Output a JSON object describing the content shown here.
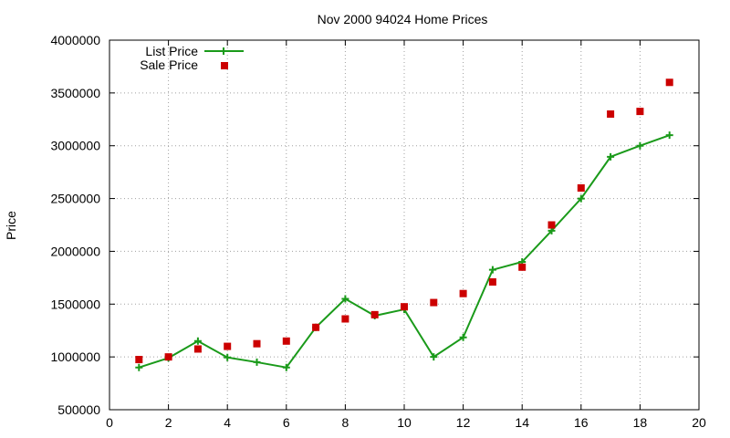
{
  "chart_data": {
    "type": "line",
    "title": "Nov 2000 94024 Home Prices",
    "xlabel": "",
    "ylabel": "Price",
    "xlim": [
      0,
      20
    ],
    "ylim": [
      500000,
      4000000
    ],
    "xticks": [
      0,
      2,
      4,
      6,
      8,
      10,
      12,
      14,
      16,
      18,
      20
    ],
    "yticks": [
      500000,
      1000000,
      1500000,
      2000000,
      2500000,
      3000000,
      3500000,
      4000000
    ],
    "grid": true,
    "legend_position": "top-left",
    "series": [
      {
        "name": "List Price",
        "style": "line-with-plus-markers",
        "color": "#1a9a1a",
        "x": [
          1,
          2,
          3,
          4,
          5,
          6,
          7,
          8,
          9,
          10,
          11,
          12,
          13,
          14,
          15,
          16,
          17,
          18,
          19
        ],
        "y": [
          900000,
          990000,
          1150000,
          995000,
          950000,
          900000,
          1280000,
          1550000,
          1390000,
          1450000,
          1000000,
          1185000,
          1825000,
          1900000,
          2195000,
          2500000,
          2895000,
          3000000,
          3100000
        ]
      },
      {
        "name": "Sale Price",
        "style": "square-markers",
        "color": "#cc0000",
        "x": [
          1,
          2,
          3,
          4,
          5,
          6,
          7,
          8,
          9,
          10,
          11,
          12,
          13,
          14,
          15,
          16,
          17,
          18,
          19
        ],
        "y": [
          975000,
          1000000,
          1075000,
          1100000,
          1125000,
          1150000,
          1280000,
          1360000,
          1400000,
          1475000,
          1515000,
          1600000,
          1710000,
          1850000,
          2250000,
          2600000,
          3300000,
          3325000,
          3600000
        ]
      }
    ]
  }
}
